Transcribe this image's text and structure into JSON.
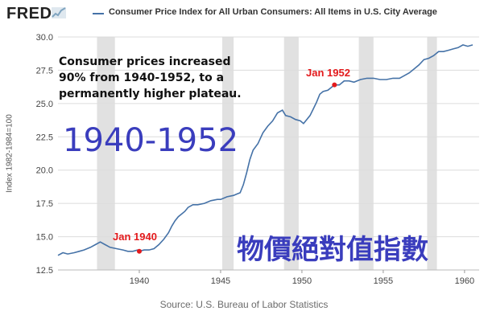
{
  "header": {
    "logo_text": "FRED",
    "title": "Consumer Price Index for All Urban Consumers: All Items in U.S. City Average",
    "series_color": "#4572a7"
  },
  "source": "Source: U.S. Bureau of Labor Statistics",
  "annotations": {
    "note_lines": [
      "Consumer prices increased",
      "90% from 1940-1952, to a",
      "permanently higher plateau."
    ],
    "range_text": "1940-1952",
    "cjk_text": "物價絕對值指數",
    "point_1940_label": "Jan 1940",
    "point_1952_label": "Jan 1952",
    "marker_color": "#e31a1c",
    "overlay_text_color": "#3a3dbd"
  },
  "chart_data": {
    "type": "line",
    "title": "Consumer Price Index for All Urban Consumers: All Items in U.S. City Average",
    "ylabel": "Index 1982-1984=100",
    "xlabel": "",
    "xlim": [
      1935.0,
      1960.6
    ],
    "ylim": [
      12.5,
      30.0
    ],
    "yticks": [
      12.5,
      15.0,
      17.5,
      20.0,
      22.5,
      25.0,
      27.5,
      30.0
    ],
    "ytick_labels": [
      "12.5",
      "15.0",
      "17.5",
      "20.0",
      "22.5",
      "25.0",
      "27.5",
      "30.0"
    ],
    "xticks": [
      1940,
      1945,
      1950,
      1955,
      1960
    ],
    "xtick_labels": [
      "1940",
      "1945",
      "1950",
      "1955",
      "1960"
    ],
    "recessions": [
      [
        1937.4,
        1938.5
      ],
      [
        1945.1,
        1945.8
      ],
      [
        1948.9,
        1949.8
      ],
      [
        1953.5,
        1954.4
      ],
      [
        1957.7,
        1958.3
      ]
    ],
    "grid": "horizontal",
    "series": [
      {
        "name": "Consumer Price Index for All Urban Consumers: All Items in U.S. City Average",
        "x": [
          1935.0,
          1935.3,
          1935.6,
          1936.0,
          1936.3,
          1936.6,
          1937.0,
          1937.3,
          1937.6,
          1937.9,
          1938.2,
          1938.6,
          1939.0,
          1939.3,
          1939.6,
          1939.9,
          1940.0,
          1940.3,
          1940.6,
          1940.9,
          1941.2,
          1941.5,
          1941.8,
          1942.0,
          1942.2,
          1942.4,
          1942.6,
          1942.8,
          1943.0,
          1943.3,
          1943.6,
          1944.0,
          1944.4,
          1944.8,
          1945.0,
          1945.4,
          1945.8,
          1946.0,
          1946.2,
          1946.4,
          1946.6,
          1946.8,
          1947.0,
          1947.3,
          1947.6,
          1947.9,
          1948.2,
          1948.5,
          1948.8,
          1949.0,
          1949.3,
          1949.6,
          1949.9,
          1950.1,
          1950.3,
          1950.5,
          1950.7,
          1950.9,
          1951.1,
          1951.3,
          1951.6,
          1952.0,
          1952.3,
          1952.6,
          1952.9,
          1953.2,
          1953.6,
          1954.0,
          1954.4,
          1954.8,
          1955.2,
          1955.6,
          1956.0,
          1956.3,
          1956.6,
          1956.9,
          1957.2,
          1957.5,
          1957.8,
          1958.1,
          1958.4,
          1958.7,
          1959.0,
          1959.3,
          1959.6,
          1959.9,
          1960.2,
          1960.5
        ],
        "y": [
          13.6,
          13.8,
          13.7,
          13.8,
          13.9,
          14.0,
          14.2,
          14.4,
          14.6,
          14.4,
          14.2,
          14.1,
          14.0,
          13.9,
          13.9,
          14.0,
          13.9,
          14.0,
          14.0,
          14.1,
          14.4,
          14.8,
          15.3,
          15.8,
          16.2,
          16.5,
          16.7,
          16.9,
          17.2,
          17.4,
          17.4,
          17.5,
          17.7,
          17.8,
          17.8,
          18.0,
          18.1,
          18.2,
          18.3,
          18.9,
          19.8,
          20.8,
          21.5,
          22.0,
          22.8,
          23.3,
          23.7,
          24.3,
          24.5,
          24.1,
          24.0,
          23.8,
          23.7,
          23.5,
          23.8,
          24.1,
          24.6,
          25.1,
          25.7,
          25.9,
          26.0,
          26.4,
          26.4,
          26.7,
          26.7,
          26.6,
          26.8,
          26.9,
          26.9,
          26.8,
          26.8,
          26.9,
          26.9,
          27.1,
          27.3,
          27.6,
          27.9,
          28.3,
          28.4,
          28.6,
          28.9,
          28.9,
          29.0,
          29.1,
          29.2,
          29.4,
          29.3,
          29.4
        ]
      }
    ],
    "marked_points": [
      {
        "x": 1940.0,
        "y": 13.9,
        "label": "Jan 1940"
      },
      {
        "x": 1952.0,
        "y": 26.4,
        "label": "Jan 1952"
      }
    ]
  }
}
